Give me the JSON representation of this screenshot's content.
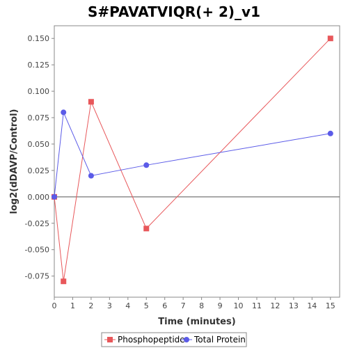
{
  "chart_data": {
    "type": "line",
    "title": "S#PAVATVIQR(+ 2)_v1",
    "xlabel": "Time (minutes)",
    "ylabel": "log2(dDAVP/Control)",
    "xlim": [
      0,
      15.5
    ],
    "ylim": [
      -0.095,
      0.162
    ],
    "xticks": [
      0,
      1,
      2,
      3,
      4,
      5,
      6,
      7,
      8,
      9,
      10,
      11,
      12,
      13,
      14,
      15
    ],
    "xtick_labels": [
      "0",
      "1",
      "2",
      "3",
      "4",
      "5",
      "6",
      "7",
      "8",
      "9",
      "10",
      "11",
      "12",
      "13",
      "14",
      "15"
    ],
    "yticks": [
      -0.075,
      -0.05,
      -0.025,
      0.0,
      0.025,
      0.05,
      0.075,
      0.1,
      0.125,
      0.15
    ],
    "ytick_labels": [
      "-0.075",
      "-0.050",
      "-0.025",
      "0.000",
      "0.025",
      "0.050",
      "0.075",
      "0.100",
      "0.125",
      "0.150"
    ],
    "grid": false,
    "zero_line": true,
    "legend_position": "bottom",
    "series": [
      {
        "name": "Phosphopeptide",
        "color": "#e8575a",
        "marker": "square",
        "x": [
          0,
          0.5,
          2,
          5,
          15
        ],
        "y": [
          0.0,
          -0.08,
          0.09,
          -0.03,
          0.15
        ]
      },
      {
        "name": "Total Protein",
        "color": "#5b5be8",
        "marker": "circle",
        "x": [
          0,
          0.5,
          2,
          5,
          15
        ],
        "y": [
          0.0,
          0.08,
          0.02,
          0.03,
          0.06
        ]
      }
    ]
  }
}
